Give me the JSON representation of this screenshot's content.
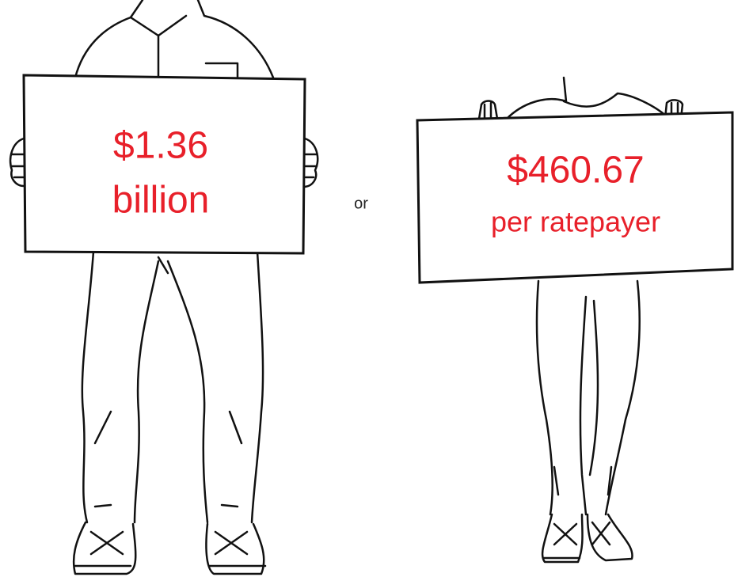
{
  "left_sign": {
    "amount": "$1.36",
    "unit": "billion"
  },
  "separator": "or",
  "right_sign": {
    "amount": "$460.67",
    "unit": "per ratepayer"
  }
}
